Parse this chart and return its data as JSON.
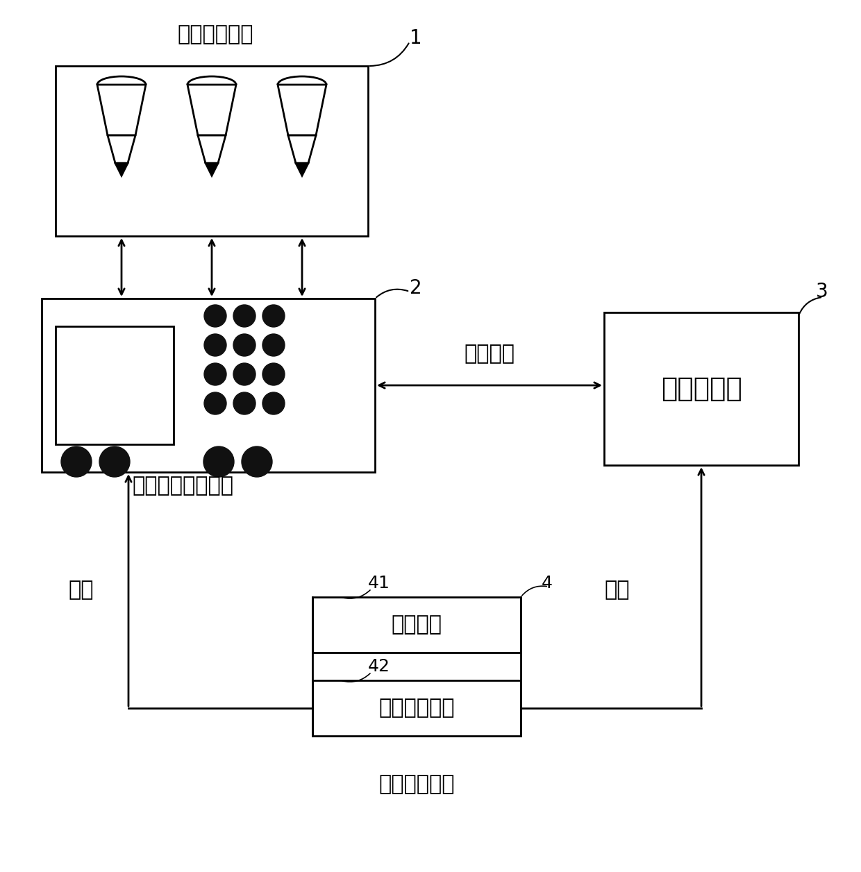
{
  "title": "",
  "bg_color": "#ffffff",
  "antenna_label": "小型接收天线",
  "antenna_label_num": "1",
  "analyzer_label": "信号与频谱分析仪",
  "analyzer_box_num": "2",
  "computer_label": "控制计算机",
  "computer_num": "3",
  "power_label": "机上供电系统",
  "power_box_num": "4",
  "power_sub1_label": "机上电源",
  "power_sub1_num": "41",
  "power_sub2_label": "蓄电池逆变器",
  "power_sub2_num": "42",
  "arrow_label_program": "程序控制",
  "arrow_label_power1": "供电",
  "arrow_label_power2": "供电"
}
